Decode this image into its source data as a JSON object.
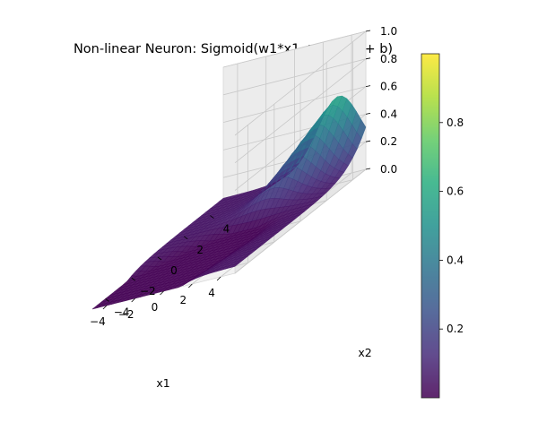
{
  "chart_data": {
    "type": "surface3d",
    "title": "Non-linear Neuron: Sigmoid(w1*x1 + w2*x2 + b)",
    "xlabel": "x1",
    "ylabel": "x2",
    "zlabel": "",
    "xlim": [
      -5,
      5
    ],
    "ylim": [
      -5,
      5
    ],
    "zlim": [
      0,
      1
    ],
    "x_ticks": [
      "−4",
      "−2",
      "0",
      "2",
      "4"
    ],
    "y_ticks": [
      "−4",
      "−2",
      "0",
      "2",
      "4"
    ],
    "z_ticks": [
      "0.0",
      "0.2",
      "0.4",
      "0.6",
      "0.8",
      "1.0"
    ],
    "surface": {
      "function": "sigmoid(w1*x1 + w2*x2 + b)",
      "grid_size": 30
    },
    "colormap": "viridis",
    "colorbar": {
      "ticks": [
        "0.2",
        "0.4",
        "0.6",
        "0.8"
      ],
      "range": [
        0,
        1
      ]
    },
    "grid": true
  }
}
